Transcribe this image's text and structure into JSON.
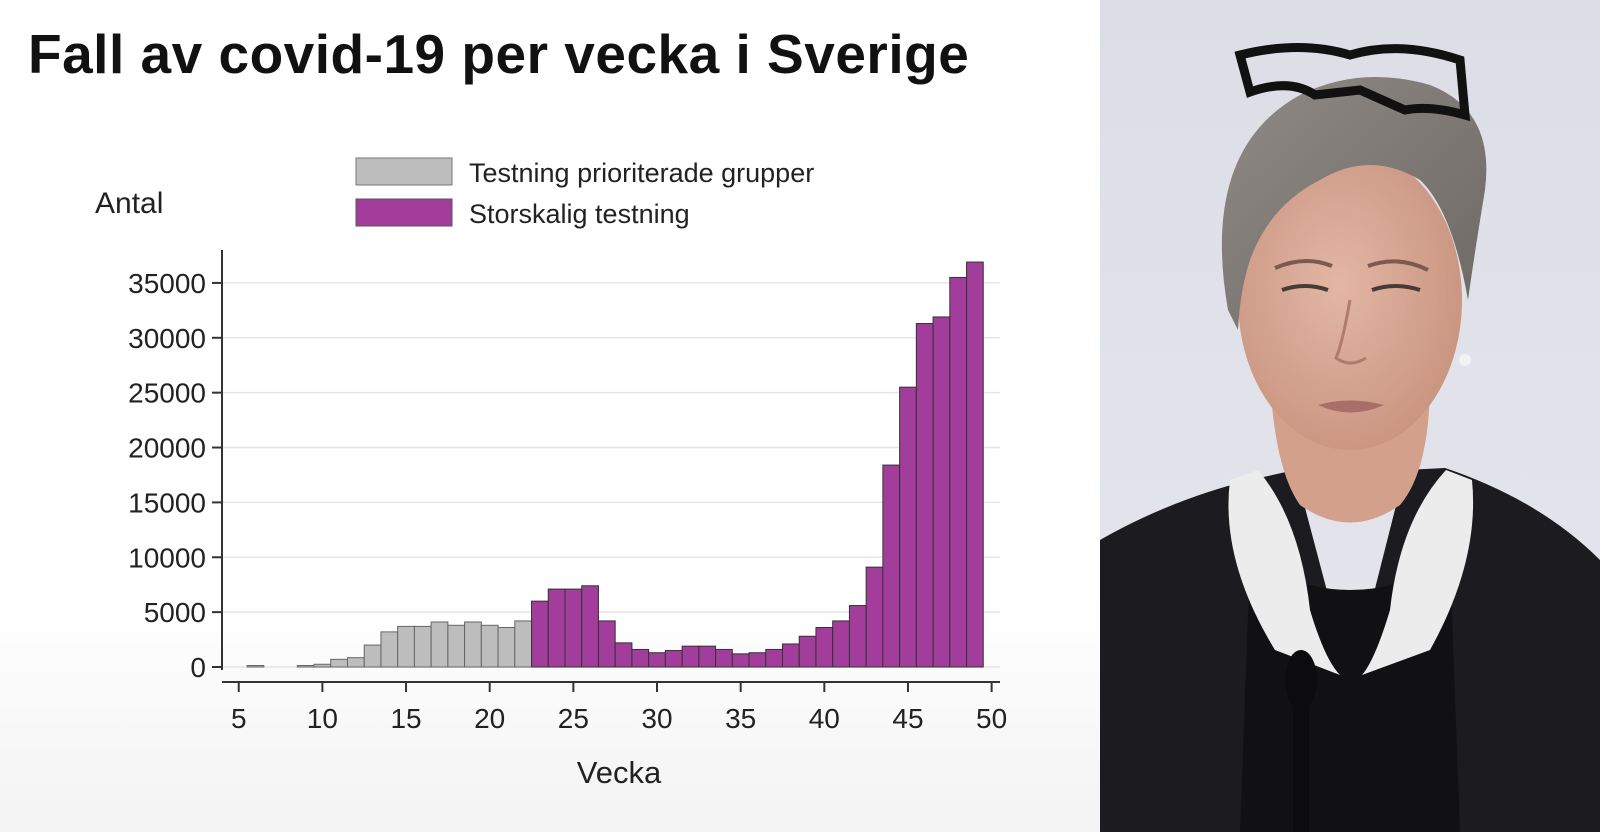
{
  "chart_data": {
    "type": "bar",
    "title": "Fall av covid-19 per vecka i Sverige",
    "xlabel": "Vecka",
    "ylabel": "Antal",
    "xlim": [
      4,
      50.5
    ],
    "ylim": [
      0,
      38000
    ],
    "xticks": [
      5,
      10,
      15,
      20,
      25,
      30,
      35,
      40,
      45,
      50
    ],
    "yticks": [
      0,
      5000,
      10000,
      15000,
      20000,
      25000,
      30000,
      35000
    ],
    "grid": "horizontal",
    "legend_position": "top-center",
    "series": [
      {
        "name": "Testning prioriterade grupper",
        "color": "#bdbdbd",
        "points": [
          {
            "x": 6,
            "y": 10
          },
          {
            "x": 9,
            "y": 50
          },
          {
            "x": 10,
            "y": 250
          },
          {
            "x": 11,
            "y": 700
          },
          {
            "x": 12,
            "y": 850
          },
          {
            "x": 13,
            "y": 2000
          },
          {
            "x": 14,
            "y": 3200
          },
          {
            "x": 15,
            "y": 3700
          },
          {
            "x": 16,
            "y": 3700
          },
          {
            "x": 17,
            "y": 4100
          },
          {
            "x": 18,
            "y": 3800
          },
          {
            "x": 19,
            "y": 4100
          },
          {
            "x": 20,
            "y": 3800
          },
          {
            "x": 21,
            "y": 3600
          },
          {
            "x": 22,
            "y": 4200
          }
        ]
      },
      {
        "name": "Storskalig testning",
        "color": "#a23d9c",
        "points": [
          {
            "x": 23,
            "y": 6000
          },
          {
            "x": 24,
            "y": 7100
          },
          {
            "x": 25,
            "y": 7100
          },
          {
            "x": 26,
            "y": 7400
          },
          {
            "x": 27,
            "y": 4200
          },
          {
            "x": 28,
            "y": 2200
          },
          {
            "x": 29,
            "y": 1600
          },
          {
            "x": 30,
            "y": 1300
          },
          {
            "x": 31,
            "y": 1500
          },
          {
            "x": 32,
            "y": 1900
          },
          {
            "x": 33,
            "y": 1900
          },
          {
            "x": 34,
            "y": 1600
          },
          {
            "x": 35,
            "y": 1200
          },
          {
            "x": 36,
            "y": 1300
          },
          {
            "x": 37,
            "y": 1600
          },
          {
            "x": 38,
            "y": 2100
          },
          {
            "x": 39,
            "y": 2800
          },
          {
            "x": 40,
            "y": 3600
          },
          {
            "x": 41,
            "y": 4200
          },
          {
            "x": 42,
            "y": 5600
          },
          {
            "x": 43,
            "y": 9100
          },
          {
            "x": 44,
            "y": 18400
          },
          {
            "x": 45,
            "y": 25500
          },
          {
            "x": 46,
            "y": 31300
          },
          {
            "x": 47,
            "y": 31900
          },
          {
            "x": 48,
            "y": 35500
          },
          {
            "x": 49,
            "y": 36900
          }
        ]
      }
    ]
  }
}
